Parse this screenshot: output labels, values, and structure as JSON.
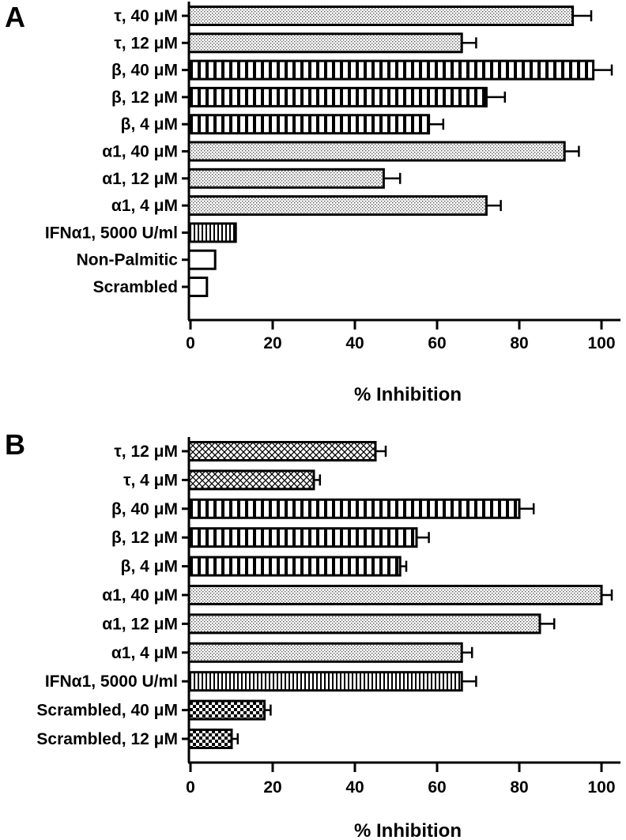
{
  "chart_data": [
    {
      "panel": "A",
      "type": "bar",
      "orientation": "horizontal",
      "xlabel": "% Inhibition",
      "xlim": [
        0,
        105
      ],
      "xticks": [
        0,
        20,
        40,
        60,
        80,
        100
      ],
      "categories": [
        "τ, 40 μM",
        "τ, 12 μM",
        "β, 40 μM",
        "β, 12 μM",
        "β, 4 μM",
        "α1, 40 μM",
        "α1, 12 μM",
        "α1, 4 μM",
        "IFNα1, 5000 U/ml",
        "Non-Palmitic",
        "Scrambled"
      ],
      "values": [
        93,
        66,
        98,
        72,
        58,
        91,
        47,
        72,
        11,
        6,
        4
      ],
      "errors": [
        4.5,
        3.5,
        4.5,
        4.5,
        3.5,
        3.5,
        4,
        3.5,
        0,
        0,
        0
      ],
      "patterns": [
        "dots",
        "dots",
        "vstripes",
        "vstripes",
        "vstripes",
        "dots",
        "dots",
        "dots",
        "fine-vstripes",
        "none",
        "none"
      ]
    },
    {
      "panel": "B",
      "type": "bar",
      "orientation": "horizontal",
      "xlabel": "% Inhibition",
      "xlim": [
        0,
        105
      ],
      "xticks": [
        0,
        20,
        40,
        60,
        80,
        100
      ],
      "categories": [
        "τ, 12 μM",
        "τ, 4 μM",
        "β, 40 μM",
        "β, 12 μM",
        "β, 4 μM",
        "α1, 40 μM",
        "α1, 12 μM",
        "α1, 4 μM",
        "IFNα1, 5000 U/ml",
        "Scrambled, 40 μM",
        "Scrambled, 12 μM"
      ],
      "values": [
        45,
        30,
        80,
        55,
        51,
        100,
        85,
        66,
        66,
        18,
        10
      ],
      "errors": [
        2.5,
        1.5,
        3.5,
        3,
        1.5,
        2.5,
        3.5,
        2.5,
        3.5,
        1.5,
        1.5
      ],
      "patterns": [
        "crosshatch",
        "crosshatch",
        "vstripes",
        "vstripes",
        "vstripes",
        "dots",
        "dots",
        "dots",
        "fine-vstripes",
        "checker",
        "checker"
      ]
    }
  ]
}
